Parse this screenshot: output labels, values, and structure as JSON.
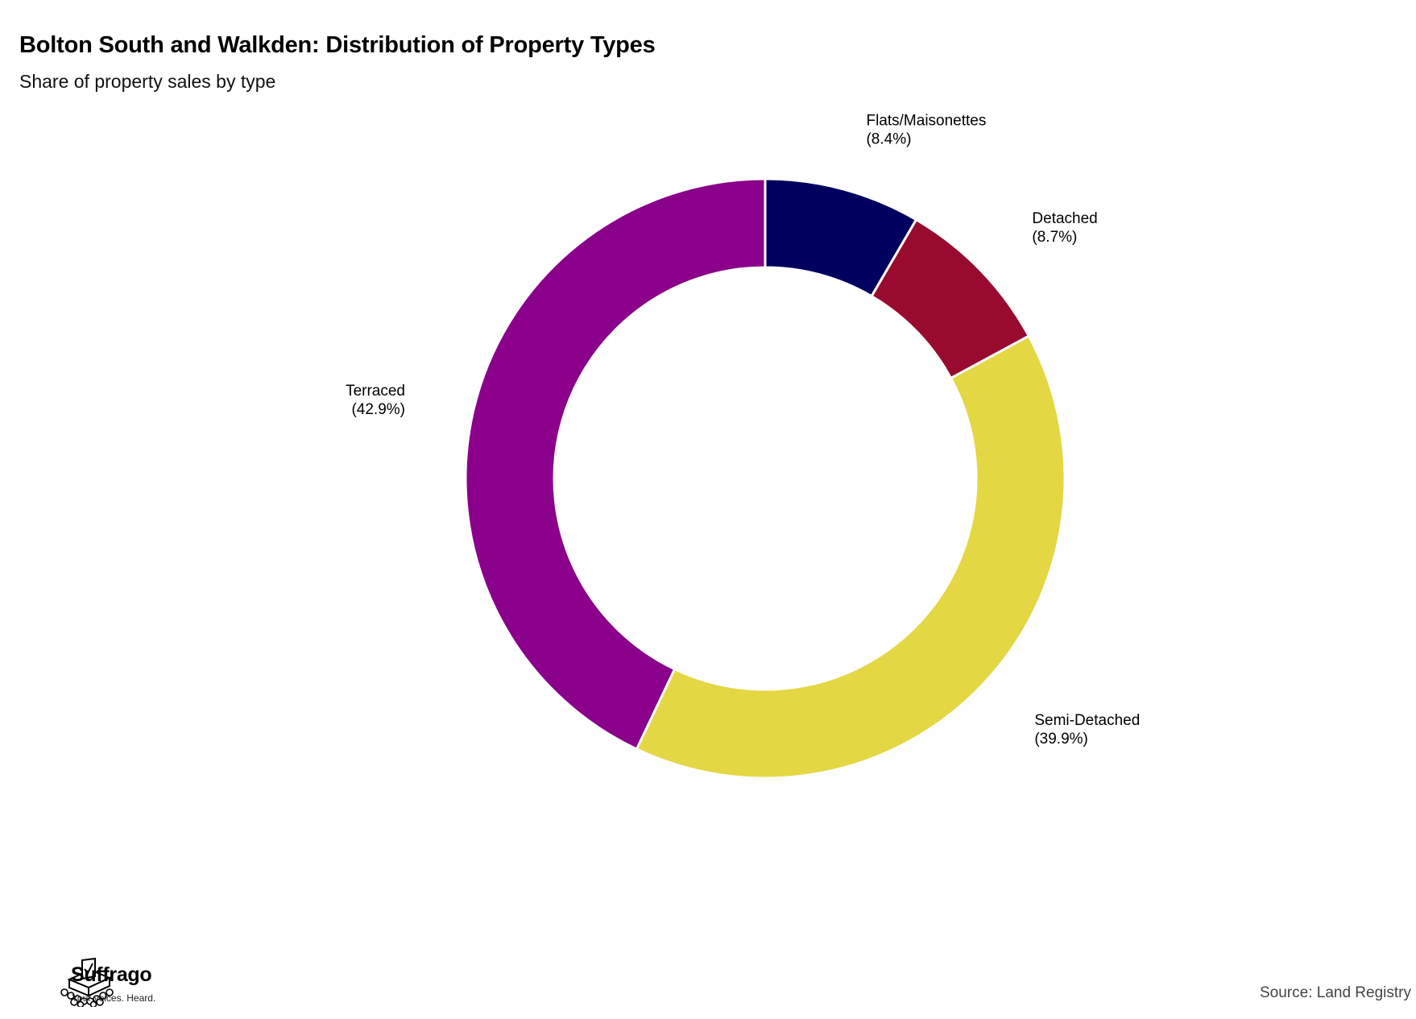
{
  "header": {
    "title": "Bolton South and Walkden: Distribution of Property Types",
    "subtitle": "Share of property sales by type"
  },
  "chart_data": {
    "type": "pie",
    "variant": "donut",
    "title": "Bolton South and Walkden: Distribution of Property Types",
    "subtitle": "Share of property sales by type",
    "categories": [
      "Flats/Maisonettes",
      "Detached",
      "Semi-Detached",
      "Terraced"
    ],
    "values": [
      8.4,
      8.7,
      39.9,
      42.9
    ],
    "labels": [
      "(8.4%)",
      "(8.7%)",
      "(39.9%)",
      "(42.9%)"
    ],
    "colors": [
      "#00005f",
      "#990a2f",
      "#e3d744",
      "#8a008a"
    ],
    "start_angle": "12 o'clock",
    "direction": "clockwise",
    "legend": "none"
  },
  "footer": {
    "brand_name": "Suffrago",
    "brand_tagline": "Your voices. Heard.",
    "logo_icon": "ballot-box-icon",
    "source": "Source: Land Registry"
  }
}
